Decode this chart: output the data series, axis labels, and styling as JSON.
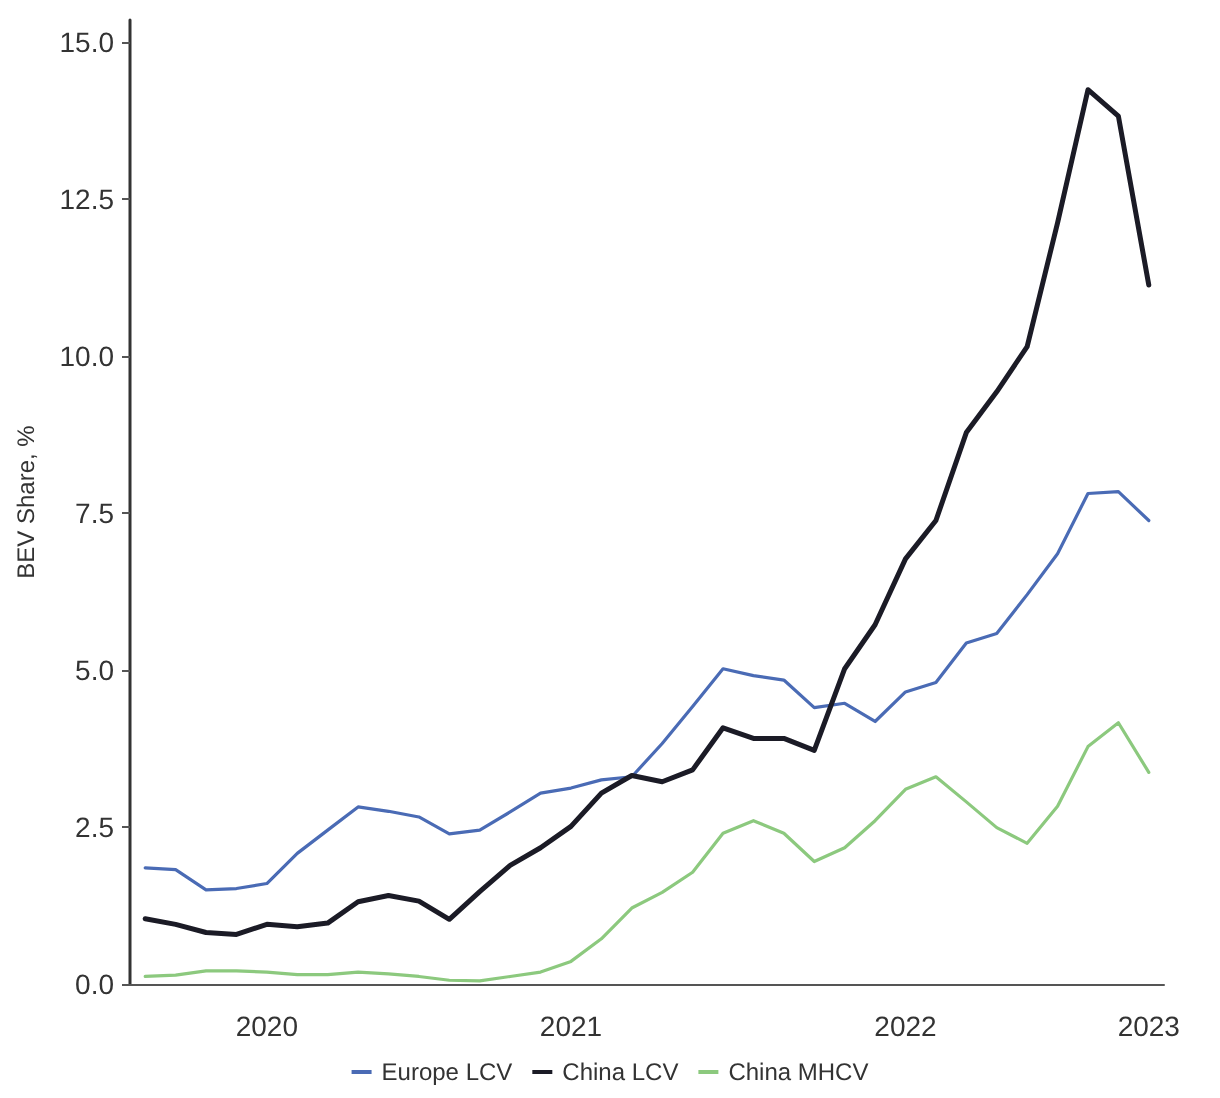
{
  "chart_data": {
    "type": "line",
    "ylabel": "BEV Share, %",
    "categories": [
      null,
      null,
      null,
      null,
      "2020",
      null,
      null,
      null,
      null,
      null,
      null,
      null,
      null,
      null,
      "2021",
      null,
      null,
      null,
      null,
      null,
      null,
      null,
      null,
      null,
      null,
      "2022",
      null,
      null,
      null,
      null,
      null,
      null,
      null,
      "2023"
    ],
    "series": [
      {
        "name": "Europe LCV",
        "color": "#4a6bb5",
        "values": [
          1.85,
          1.82,
          1.5,
          1.52,
          1.6,
          2.08,
          2.45,
          2.82,
          2.75,
          2.66,
          2.39,
          2.45,
          2.74,
          3.04,
          3.12,
          3.25,
          3.3,
          3.83,
          4.42,
          5.02,
          4.91,
          4.84,
          4.4,
          4.47,
          4.18,
          4.65,
          4.8,
          5.43,
          5.58,
          6.2,
          6.85,
          7.81,
          7.84,
          7.38
        ]
      },
      {
        "name": "China LCV",
        "color": "#1b1b26",
        "values": [
          1.04,
          0.95,
          0.82,
          0.79,
          0.95,
          0.91,
          0.97,
          1.31,
          1.41,
          1.32,
          1.03,
          1.47,
          1.89,
          2.17,
          2.51,
          3.04,
          3.32,
          3.22,
          3.41,
          4.08,
          3.91,
          3.91,
          3.72,
          5.02,
          5.72,
          6.77,
          7.38,
          8.78,
          9.43,
          10.15,
          12.12,
          14.24,
          13.82,
          11.13
        ]
      },
      {
        "name": "China MHCV",
        "color": "#8cc97e",
        "values": [
          0.12,
          0.14,
          0.21,
          0.21,
          0.19,
          0.15,
          0.15,
          0.19,
          0.16,
          0.12,
          0.06,
          0.05,
          0.12,
          0.19,
          0.36,
          0.72,
          1.21,
          1.46,
          1.78,
          2.4,
          2.6,
          2.4,
          1.95,
          2.17,
          2.6,
          3.1,
          3.3,
          2.9,
          2.49,
          2.24,
          2.83,
          3.78,
          4.16,
          3.37
        ]
      }
    ],
    "ylim": [
      0,
      15.35
    ],
    "yticks": [
      {
        "value": 0,
        "label": "0.0"
      },
      {
        "value": 2.5,
        "label": "2.5"
      },
      {
        "value": 5,
        "label": "5.0"
      },
      {
        "value": 7.5,
        "label": "7.5"
      },
      {
        "value": 10,
        "label": "10.0"
      },
      {
        "value": 12.5,
        "label": "12.5"
      },
      {
        "value": 15,
        "label": "15.0"
      }
    ],
    "grid": false,
    "legend": "bottom",
    "marker": "none",
    "line_style": "solid"
  }
}
